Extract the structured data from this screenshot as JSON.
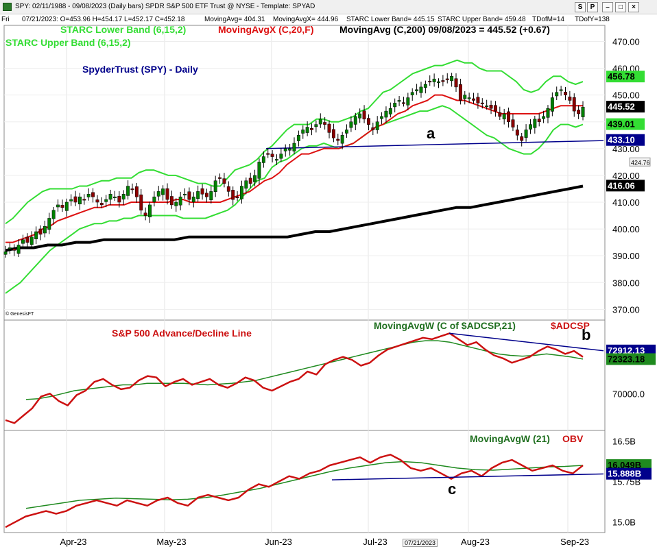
{
  "window": {
    "title": "SPY: 02/11/1988 - 09/08/2023 (Daily bars)  SPDR S&P 500 ETF Trust @ NYSE - Template: SPYAD",
    "buttons": [
      "S",
      "P",
      "–",
      "□",
      "×"
    ]
  },
  "infobar": {
    "day": "Fri",
    "values": "07/21/2023:  O=453.96  H=454.17  L=452.17  C=452.18",
    "ma200": "MovingAvg= 404.31",
    "mavgx": "MovingAvgX= 444.96",
    "starc_lower": "STARC Lower Band= 445.15",
    "starc_upper": "STARC Upper Band= 459.48",
    "tdom": "TDofM=14",
    "tdoy": "TDofY=138"
  },
  "colors": {
    "price": "#008000",
    "starc": "#33dd33",
    "ema20": "#dd1111",
    "sma200": "#000000",
    "trend": "#00008b",
    "ad": "#cc1111",
    "ad_ma": "#1f8a1f"
  },
  "legends": {
    "starc_lower": "STARC Lower Band (6,15,2)",
    "mavgx": "MovingAvgX (C,20,F)",
    "mavg": "MovingAvg (C,200)  09/08/2023 = 445.52 (+0.67)",
    "starc_upper": "STARC Upper Band (6,15,2)",
    "title": "SpyderTrust (SPY) - Daily",
    "ad_title": "S&P 500 Advance/Decline Line",
    "ad_ma": "MovingAvgW (C of $ADCSP,21)",
    "ad_sym": "$ADCSP",
    "obv_ma": "MovingAvgW (21)",
    "obv_sym": "OBV",
    "copyright": "© GenesisFT",
    "ann_a": "a",
    "ann_b": "b",
    "ann_c": "c",
    "cursor_date": "07/21/2023"
  },
  "chart_data": [
    {
      "type": "candlestick",
      "panel": "price",
      "ylim": [
        366,
        476
      ],
      "yticks": [
        470,
        460,
        450,
        440,
        430,
        420,
        410,
        400,
        390,
        380,
        370
      ],
      "ytick_labels": [
        "470.00",
        "460.00",
        "450.00",
        "440.00",
        "430.00",
        "420.00",
        "410.00",
        "400.00",
        "390.00",
        "380.00",
        "370.00"
      ],
      "price_closes": [
        391.5,
        393,
        392,
        394,
        396,
        395,
        397,
        399,
        398,
        401,
        404,
        407,
        409,
        408,
        410,
        411,
        410,
        412,
        411,
        413,
        412,
        410,
        409,
        411,
        413,
        412,
        410,
        413,
        416,
        415,
        412,
        407,
        405,
        409,
        412,
        414,
        415,
        411,
        409,
        410,
        412,
        413,
        411,
        412,
        414,
        413,
        412,
        414,
        418,
        419,
        417,
        414,
        411,
        412,
        416,
        418,
        417,
        420,
        425,
        427,
        428,
        427,
        426,
        428,
        430,
        430,
        432,
        435,
        437,
        438,
        437,
        439,
        441,
        439,
        436,
        434,
        433,
        435,
        437,
        440,
        442,
        443,
        441,
        439,
        437,
        440,
        442,
        444,
        445,
        447,
        448,
        447,
        449,
        451,
        452,
        453,
        454,
        455,
        456,
        455,
        455,
        456,
        457,
        453,
        448,
        450,
        449,
        448,
        447,
        447,
        446,
        445,
        444,
        442,
        443,
        440,
        438,
        435,
        433,
        437,
        439,
        441,
        440,
        442,
        445,
        449,
        451,
        452,
        450,
        448,
        444,
        443,
        445.5
      ],
      "series": [
        {
          "name": "STARC Upper Band (6,15,2)",
          "values": [
            402,
            404,
            407,
            410,
            412,
            414,
            415,
            415,
            415,
            415,
            416,
            416,
            417,
            418,
            418,
            419,
            419,
            419,
            421,
            422,
            422,
            421,
            420,
            420,
            419,
            418,
            417,
            417,
            416,
            416,
            419,
            422,
            423,
            424,
            426,
            429,
            431,
            434,
            437,
            439,
            439,
            439,
            441,
            441,
            440,
            440,
            441,
            442,
            444,
            445,
            448,
            451,
            452,
            454,
            456,
            458,
            459,
            460,
            461,
            461,
            462,
            463,
            462,
            462,
            460,
            459,
            459,
            459,
            457,
            455,
            452,
            451,
            452,
            455,
            457,
            457,
            455,
            454,
            455
          ]
        },
        {
          "name": "MovingAvgX (C,20,F)",
          "values": [
            395,
            395,
            396,
            397,
            398,
            400,
            401,
            403,
            404,
            405,
            406,
            407,
            408,
            408,
            409,
            409,
            409,
            410,
            410,
            410,
            410,
            410,
            410,
            411,
            411,
            410,
            410,
            410,
            410,
            410,
            411,
            412,
            413,
            414,
            416,
            418,
            419,
            421,
            424,
            426,
            428,
            428,
            429,
            430,
            430,
            430,
            431,
            432,
            434,
            436,
            438,
            439,
            441,
            443,
            444,
            446,
            447,
            448,
            450,
            450,
            449,
            448,
            448,
            447,
            446,
            445,
            444,
            443,
            443,
            443,
            443,
            443,
            443,
            444,
            445,
            446,
            446,
            446,
            446
          ]
        },
        {
          "name": "STARC Lower Band (6,15,2)",
          "values": [
            376,
            378,
            380,
            383,
            386,
            389,
            392,
            394,
            396,
            398,
            400,
            401,
            402,
            402,
            403,
            403,
            404,
            404,
            405,
            405,
            405,
            405,
            405,
            405,
            404,
            404,
            404,
            404,
            405,
            406,
            407,
            409,
            412,
            415,
            418,
            419,
            423,
            425,
            426,
            428,
            430,
            431,
            431,
            432,
            431,
            430,
            431,
            432,
            434,
            436,
            438,
            439,
            440,
            441,
            442,
            443,
            444,
            444,
            445,
            446,
            445,
            443,
            441,
            439,
            437,
            435,
            434,
            432,
            430,
            429,
            428,
            428,
            430,
            433,
            437,
            439,
            439,
            438,
            439
          ]
        },
        {
          "name": "MovingAvg (C,200)",
          "values": [
            392,
            393,
            393,
            394,
            394,
            395,
            395,
            396,
            396,
            396,
            396,
            396,
            396,
            397,
            397,
            397,
            397,
            397,
            397,
            397,
            397,
            398,
            399,
            399,
            400,
            401,
            402,
            403,
            404,
            405,
            406,
            407,
            408,
            408,
            409,
            410,
            411,
            412,
            413,
            414,
            415,
            416
          ]
        },
        {
          "name": "trend",
          "values": [
            430,
            433
          ]
        }
      ],
      "last_values": [
        "456.78",
        "445.52",
        "439.01",
        "433.10",
        "416.06"
      ],
      "small_tag": "424.76"
    },
    {
      "type": "line",
      "panel": "advance_decline",
      "yticks_labels": [
        "70000.0"
      ],
      "series": [
        {
          "name": "$ADCSP",
          "values": [
            68200,
            68000,
            68500,
            69000,
            69800,
            70000,
            69500,
            69200,
            69900,
            70200,
            70800,
            71000,
            70600,
            70300,
            70400,
            70900,
            71200,
            71100,
            70500,
            70800,
            71000,
            70600,
            70800,
            71000,
            70600,
            70400,
            70700,
            71100,
            70900,
            70400,
            70200,
            70500,
            70800,
            71000,
            71500,
            71300,
            72000,
            72300,
            72500,
            72300,
            71900,
            72100,
            72600,
            73000,
            73200,
            73400,
            73600,
            73800,
            73700,
            73900,
            74100,
            73700,
            73300,
            73500,
            73000,
            72600,
            72400,
            72100,
            72300,
            72500,
            72900,
            73200,
            73000,
            72700,
            72900,
            72500
          ]
        },
        {
          "name": "MovingAvgW (C of $ADCSP,21)",
          "values": [
            69600,
            69650,
            69800,
            70000,
            70200,
            70300,
            70400,
            70500,
            70600,
            70600,
            70700,
            70700,
            70700,
            70700,
            70650,
            70600,
            70650,
            70700,
            70800,
            70900,
            71100,
            71300,
            71500,
            71700,
            71900,
            72100,
            72300,
            72500,
            72700,
            72900,
            73100,
            73300,
            73500,
            73600,
            73600,
            73500,
            73300,
            73100,
            72900,
            72700,
            72600,
            72550,
            72600,
            72700,
            72600,
            72500,
            72350
          ]
        },
        {
          "name": "trend",
          "values": [
            74100,
            72912
          ]
        }
      ],
      "last_values": [
        "72912.13",
        "72323.18"
      ]
    },
    {
      "type": "line",
      "panel": "obv",
      "yticks_labels": [
        "16.5B",
        "15.75B",
        "15.0B"
      ],
      "series": [
        {
          "name": "OBV",
          "values": [
            14.9,
            15.0,
            15.1,
            15.15,
            15.2,
            15.15,
            15.2,
            15.3,
            15.35,
            15.4,
            15.35,
            15.3,
            15.4,
            15.35,
            15.3,
            15.4,
            15.45,
            15.35,
            15.3,
            15.45,
            15.5,
            15.45,
            15.4,
            15.45,
            15.6,
            15.7,
            15.65,
            15.75,
            15.85,
            15.8,
            15.9,
            15.95,
            16.05,
            16.1,
            16.15,
            16.2,
            16.1,
            16.2,
            16.25,
            16.15,
            16.0,
            15.95,
            16.0,
            15.9,
            15.8,
            15.9,
            15.95,
            15.85,
            16.0,
            16.1,
            16.15,
            16.05,
            15.95,
            16.0,
            16.05,
            15.95,
            15.9,
            16.05
          ]
        },
        {
          "name": "MovingAvgW (21)",
          "values": [
            15.25,
            15.3,
            15.35,
            15.4,
            15.42,
            15.44,
            15.43,
            15.42,
            15.41,
            15.42,
            15.45,
            15.5,
            15.56,
            15.62,
            15.7,
            15.78,
            15.86,
            15.94,
            16.0,
            16.05,
            16.1,
            16.12,
            16.1,
            16.05,
            16.0,
            15.97,
            15.96,
            15.98,
            16.0,
            16.02,
            16.03,
            16.05
          ]
        },
        {
          "name": "trend",
          "values": [
            15.78,
            15.89
          ]
        }
      ],
      "last_values": [
        "16.049B",
        "15.888B"
      ]
    }
  ],
  "xaxis": {
    "labels": [
      "Apr-23",
      "May-23",
      "Jun-23",
      "Jul-23",
      "Aug-23",
      "Sep-23"
    ]
  }
}
